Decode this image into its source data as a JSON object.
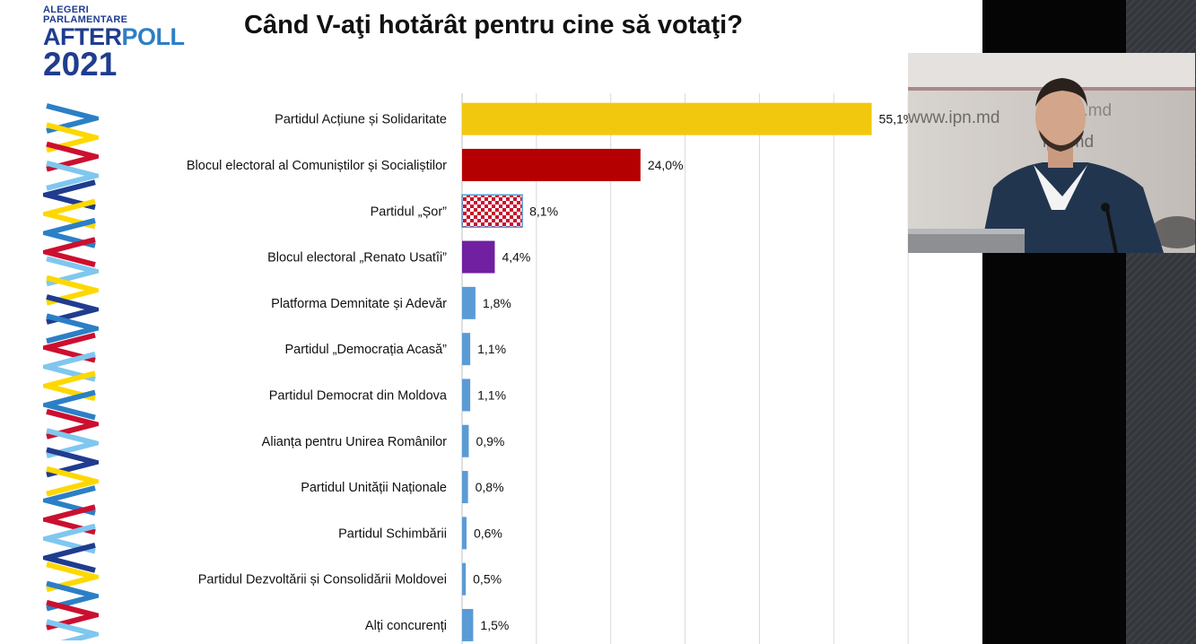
{
  "logo": {
    "line1": "ALEGERI",
    "line2": "PARLAMENTARE",
    "brand_part1": "AFTER",
    "brand_part2": "POLL",
    "year": "2021"
  },
  "title": "Când V-aţi hotărât pentru cine să votaţi?",
  "colors": {
    "pas": "#f2c80f",
    "becs": "#b40000",
    "sor_red": "#c8102e",
    "renato": "#7020a0",
    "other": "#5b9bd5",
    "brand": "#1f3c8f"
  },
  "chart_data": {
    "type": "bar",
    "orientation": "horizontal",
    "categories": [
      "Partidul Acțiune și Solidaritate",
      "Blocul electoral al Comuniștilor și Socialiștilor",
      "Partidul „Șor”",
      "Blocul electoral „Renato Usatîi”",
      "Platforma Demnitate și Adevăr",
      "Partidul „Democrația Acasă”",
      "Partidul Democrat din Moldova",
      "Alianța pentru Unirea Românilor",
      "Partidul Unității Naționale",
      "Partidul Schimbării",
      "Partidul Dezvoltării și Consolidării Moldovei",
      "Alți concurenți"
    ],
    "values": [
      55.1,
      24.0,
      8.1,
      4.4,
      1.8,
      1.1,
      1.1,
      0.9,
      0.8,
      0.6,
      0.5,
      1.5
    ],
    "labels": [
      "55,1%",
      "24,0%",
      "8,1%",
      "4,4%",
      "1,8%",
      "1,1%",
      "1,1%",
      "0,9%",
      "0,8%",
      "0,6%",
      "0,5%",
      "1,5%"
    ],
    "bar_colors": [
      "#f2c80f",
      "#b40000",
      "checker",
      "#7020a0",
      "#5b9bd5",
      "#5b9bd5",
      "#5b9bd5",
      "#5b9bd5",
      "#5b9bd5",
      "#5b9bd5",
      "#5b9bd5",
      "#5b9bd5"
    ],
    "xlim": [
      0,
      70
    ],
    "grid": true,
    "legend": "none"
  },
  "video": {
    "watermark1": "www.ipn.md",
    "watermark2": "ipn.md"
  }
}
